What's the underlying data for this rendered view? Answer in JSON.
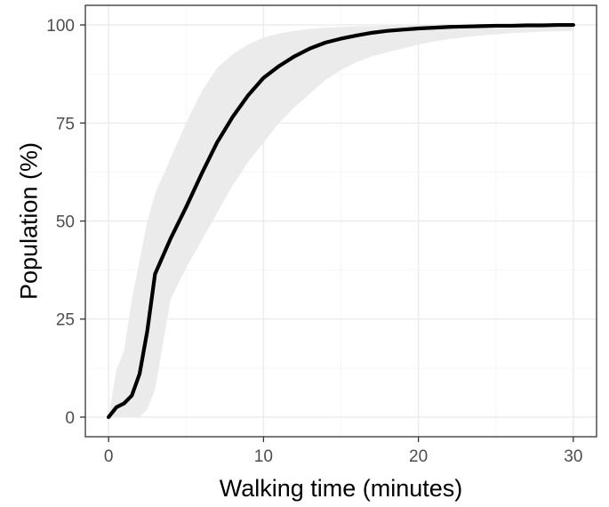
{
  "chart_data": {
    "type": "line",
    "title": "",
    "xlabel": "Walking time (minutes)",
    "ylabel": "Population (%)",
    "xlim": [
      -1.5,
      31.5
    ],
    "ylim": [
      -5,
      105
    ],
    "x_ticks": [
      0,
      10,
      20,
      30
    ],
    "x_tick_labels": [
      "0",
      "10",
      "20",
      "30"
    ],
    "y_ticks": [
      0,
      25,
      50,
      75,
      100
    ],
    "y_tick_labels": [
      "0",
      "25",
      "50",
      "75",
      "100"
    ],
    "grid": true,
    "legend": "none",
    "colors": {
      "line": "#000000",
      "ribbon": "#ebebeb",
      "grid_major": "#ebebeb",
      "grid_minor": "#f5f5f5",
      "panel_border": "#333333"
    },
    "series": [
      {
        "x": [
          0,
          0.5,
          1,
          1.5,
          2,
          2.5,
          3,
          4,
          5,
          6,
          7,
          8,
          9,
          10,
          11,
          12,
          13,
          14,
          15,
          16,
          17,
          18,
          19,
          20,
          21,
          22,
          23,
          24,
          25,
          26,
          27,
          28,
          29,
          30
        ],
        "y": [
          0,
          2.5,
          3.5,
          5.5,
          11,
          22,
          36.5,
          45.5,
          53.5,
          62,
          70,
          76.5,
          82,
          86.5,
          89.5,
          92,
          94,
          95.5,
          96.5,
          97.3,
          98,
          98.5,
          98.8,
          99.1,
          99.3,
          99.5,
          99.6,
          99.7,
          99.8,
          99.8,
          99.9,
          99.9,
          100,
          100
        ]
      }
    ],
    "ribbon": {
      "x": [
        0,
        0.5,
        1,
        1.5,
        2,
        2.5,
        3,
        4,
        5,
        6,
        7,
        8,
        9,
        10,
        11,
        12,
        13,
        14,
        15,
        16,
        17,
        18,
        19,
        20,
        21,
        22,
        23,
        24,
        25,
        26,
        27,
        28,
        29,
        30
      ],
      "lower": [
        0,
        0,
        0,
        0,
        0,
        2,
        7,
        30,
        38,
        45,
        52,
        59,
        65,
        70,
        75,
        79,
        82.5,
        86,
        88.5,
        90.5,
        92,
        93,
        94,
        95,
        95.8,
        96.4,
        96.9,
        97.3,
        97.6,
        97.9,
        98.1,
        98.3,
        98.4,
        98.5
      ],
      "upper": [
        0,
        12,
        17,
        30,
        40,
        50,
        57,
        66,
        75,
        83,
        89,
        92.5,
        95,
        96.8,
        97.8,
        98.5,
        99,
        99.3,
        99.5,
        99.6,
        99.7,
        99.8,
        99.8,
        99.9,
        99.9,
        99.9,
        99.9,
        100,
        100,
        100,
        100,
        100,
        100,
        100
      ]
    }
  }
}
